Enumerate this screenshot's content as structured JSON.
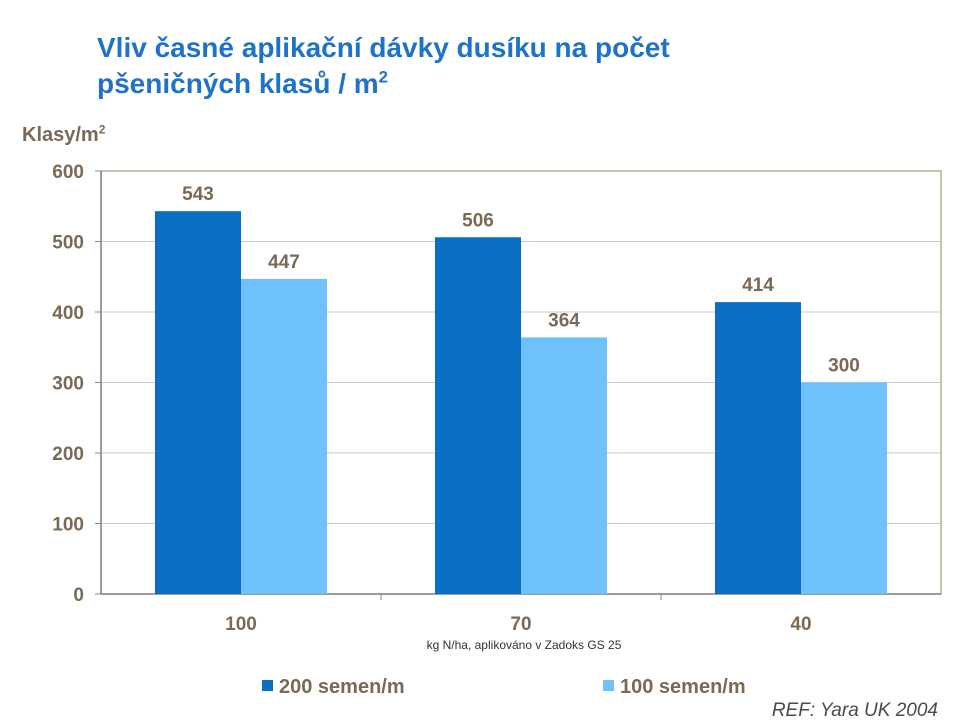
{
  "title": {
    "line1": "Vliv časné aplikační dávky dusíku na počet",
    "line2": "pšeničných klasů / m",
    "line2_sup": "2"
  },
  "y_axis": {
    "label": "Klasy/m",
    "label_sup": "2"
  },
  "x_axis": {
    "label": "kg N/ha, aplikováno  v Zadoks GS 25"
  },
  "reference": "REF: Yara UK 2004",
  "colors": {
    "series_200": "#0a6fc2",
    "series_100": "#6ec1fb",
    "grid": "#c8c8c8",
    "border": "#b5ad94"
  },
  "chart_data": {
    "type": "bar",
    "categories": [
      "100",
      "70",
      "40"
    ],
    "series": [
      {
        "name": "200 semen/m",
        "values": [
          543,
          506,
          414
        ],
        "color": "#0a6fc2"
      },
      {
        "name": "100 semen/m",
        "values": [
          447,
          364,
          300
        ],
        "color": "#6ec1fb"
      }
    ],
    "ylabel": "Klasy/m2",
    "xlabel": "kg N/ha, aplikováno  v Zadoks GS 25",
    "ylim": [
      0,
      600
    ],
    "yticks": [
      0,
      100,
      200,
      300,
      400,
      500,
      600
    ],
    "grid": true,
    "legend": "bottom"
  }
}
